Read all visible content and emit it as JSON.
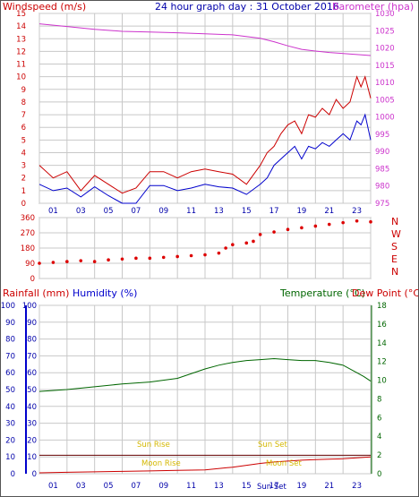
{
  "colors": {
    "windspeed": "#cc0000",
    "wind_mean": "#0000cc",
    "barometer": "#cc33cc",
    "direction": "#dd0000",
    "rainfall": "#cc0000",
    "humidity": "#0000cc",
    "temperature": "#006600",
    "dew_point": "#cc0000",
    "sun": "#d4b800",
    "title": "#0000aa"
  },
  "chart_data": [
    {
      "id": "wind",
      "type": "line",
      "title": "24 hour graph day : 31 October 2016",
      "left_label": "Windspeed (m/s)",
      "right_label": "Barometer (hpa)",
      "left_ticks": [
        "0",
        "1",
        "2",
        "3",
        "4",
        "5",
        "6",
        "7",
        "8",
        "9",
        "10",
        "11",
        "12",
        "13",
        "14",
        "15"
      ],
      "right_ticks": [
        "975",
        "980",
        "985",
        "990",
        "995",
        "1000",
        "1005",
        "1010",
        "1015",
        "1020",
        "1025",
        "1030"
      ],
      "x_ticks": [
        "01",
        "03",
        "05",
        "07",
        "09",
        "11",
        "13",
        "15",
        "17",
        "19",
        "21",
        "23"
      ],
      "ylim": [
        0,
        15
      ],
      "ylim_right": [
        975,
        1030
      ],
      "xlim": [
        0,
        24
      ],
      "series": {
        "gust_x": [
          0,
          1,
          2,
          3,
          4,
          5,
          6,
          7,
          8,
          9,
          10,
          11,
          12,
          13,
          14,
          15,
          16,
          16.5,
          17,
          17.5,
          18,
          18.5,
          19,
          19.5,
          20,
          20.5,
          21,
          21.5,
          22,
          22.5,
          23,
          23.3,
          23.6,
          24
        ],
        "gust_y": [
          3,
          2,
          2.5,
          1,
          2.2,
          1.5,
          0.8,
          1.2,
          2.5,
          2.5,
          2,
          2.5,
          2.7,
          2.5,
          2.3,
          1.5,
          3,
          4,
          4.5,
          5.5,
          6.2,
          6.5,
          5.5,
          7,
          6.8,
          7.5,
          7,
          8.2,
          7.5,
          8,
          10,
          9.2,
          10,
          8.3
        ],
        "mean_x": [
          0,
          1,
          2,
          3,
          4,
          5,
          6,
          7,
          8,
          9,
          10,
          11,
          12,
          13,
          14,
          15,
          16,
          16.5,
          17,
          17.5,
          18,
          18.5,
          19,
          19.5,
          20,
          20.5,
          21,
          21.5,
          22,
          22.5,
          23,
          23.3,
          23.6,
          24
        ],
        "mean_y": [
          1.5,
          1,
          1.2,
          0.5,
          1.3,
          0.6,
          0,
          0,
          1.4,
          1.4,
          1,
          1.2,
          1.5,
          1.3,
          1.2,
          0.7,
          1.5,
          2,
          3,
          3.5,
          4,
          4.5,
          3.5,
          4.5,
          4.3,
          4.8,
          4.5,
          5,
          5.5,
          5,
          6.5,
          6.2,
          7,
          5
        ]
      },
      "barometer_x": [
        0,
        2,
        4,
        6,
        8,
        10,
        12,
        14,
        16,
        17,
        18,
        19,
        20,
        21,
        22,
        23,
        24
      ],
      "barometer_y": [
        1027,
        1026.2,
        1025.4,
        1024.8,
        1024.6,
        1024.4,
        1024.1,
        1023.8,
        1022.8,
        1021.8,
        1020.6,
        1019.6,
        1019.1,
        1018.7,
        1018.4,
        1018.1,
        1017.8
      ]
    },
    {
      "id": "direction",
      "type": "scatter",
      "left_ticks": [
        "0",
        "90",
        "180",
        "270",
        "360"
      ],
      "right_ticks": [
        "N",
        "W",
        "S",
        "E",
        "N"
      ],
      "ylim": [
        0,
        360
      ],
      "xlim": [
        0,
        24
      ],
      "x": [
        0,
        1,
        2,
        3,
        4,
        5,
        6,
        7,
        8,
        9,
        10,
        11,
        12,
        13,
        13.5,
        14,
        15,
        15.5,
        16,
        17,
        18,
        19,
        20,
        21,
        22,
        23,
        24
      ],
      "y": [
        90,
        95,
        100,
        105,
        100,
        110,
        115,
        120,
        120,
        125,
        130,
        135,
        140,
        150,
        180,
        200,
        210,
        220,
        260,
        275,
        290,
        300,
        310,
        320,
        330,
        340,
        335
      ]
    },
    {
      "id": "climate",
      "type": "line",
      "left_label_rain": "Rainfall (mm)",
      "left_label_hum": "Humidity (%)",
      "right_label_temp": "Temperature (°C)",
      "right_label_dew": "Dew Point (°C)",
      "rain_ticks": [
        "0",
        "10",
        "20",
        "30",
        "40",
        "50",
        "60",
        "70",
        "80",
        "90",
        "100"
      ],
      "hum_ticks": [
        "0",
        "10",
        "20",
        "30",
        "40",
        "50",
        "60",
        "70",
        "80",
        "90",
        "100"
      ],
      "temp_ticks": [
        "0",
        "2",
        "4",
        "6",
        "8",
        "10",
        "12",
        "14",
        "16",
        "18"
      ],
      "x_ticks": [
        "01",
        "03",
        "05",
        "07",
        "09",
        "11",
        "13",
        "15",
        "17",
        "19",
        "21",
        "23"
      ],
      "ylim": [
        0,
        100
      ],
      "ylim_temp": [
        0,
        18
      ],
      "xlim": [
        0,
        24
      ],
      "temperature_x": [
        0,
        2,
        4,
        6,
        8,
        10,
        12,
        13,
        14,
        15,
        16,
        17,
        18,
        19,
        20,
        21,
        22,
        23,
        23.5,
        24
      ],
      "temperature_y": [
        8.8,
        9.0,
        9.3,
        9.6,
        9.8,
        10.2,
        11.2,
        11.6,
        11.9,
        12.1,
        12.2,
        12.3,
        12.2,
        12.1,
        12.1,
        11.9,
        11.6,
        10.8,
        10.4,
        9.9
      ],
      "humidity_level": 11,
      "dewpoint_x": [
        0,
        2,
        4,
        6,
        8,
        10,
        12,
        14,
        15,
        16,
        17,
        18,
        19,
        20,
        21,
        22,
        23,
        24
      ],
      "dewpoint_y": [
        0.1,
        0.15,
        0.2,
        0.25,
        0.3,
        0.35,
        0.4,
        0.7,
        0.9,
        1.1,
        1.25,
        1.35,
        1.45,
        1.5,
        1.55,
        1.6,
        1.7,
        1.8
      ],
      "sun_rise": "Sun Rise",
      "sun_set": "Sun Set",
      "moon_rise": "Moon Rise",
      "moon_set": "Moon Set",
      "bottom_marker": "Sun Set"
    }
  ]
}
